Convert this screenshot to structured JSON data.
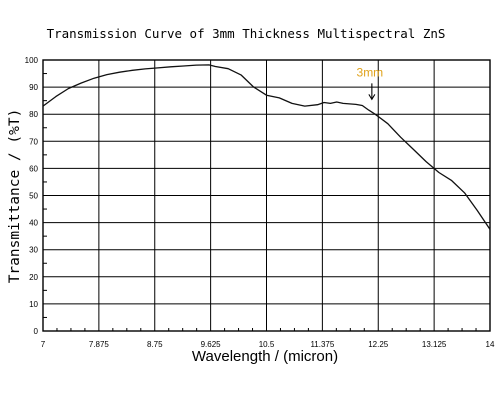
{
  "chart_data": {
    "type": "line",
    "title": "Transmission Curve of 3mm Thickness Multispectral ZnS",
    "xlabel": "Wavelength / (micron)",
    "ylabel": "Transmittance / (%T)",
    "xlim": [
      7,
      14
    ],
    "ylim": [
      0,
      100
    ],
    "x_ticks": [
      "7",
      "7.875",
      "8.75",
      "9.625",
      "10.5",
      "11.375",
      "12.25",
      "13.125",
      "14"
    ],
    "y_ticks": [
      "0",
      "10",
      "20",
      "30",
      "40",
      "50",
      "60",
      "70",
      "80",
      "90",
      "100"
    ],
    "grid": true,
    "annotation": {
      "text": "3mm",
      "x": 12.15,
      "y": 84,
      "color": "#e0a21a"
    },
    "series": [
      {
        "x": [
          7.0,
          7.2,
          7.4,
          7.6,
          7.8,
          8.0,
          8.2,
          8.4,
          8.6,
          8.8,
          9.0,
          9.2,
          9.4,
          9.6,
          9.7,
          9.9,
          10.1,
          10.3,
          10.5,
          10.7,
          10.9,
          11.1,
          11.3,
          11.4,
          11.5,
          11.6,
          11.7,
          11.8,
          11.9,
          12.0,
          12.1,
          12.2,
          12.4,
          12.6,
          12.8,
          13.0,
          13.2,
          13.4,
          13.6,
          13.8,
          14.0
        ],
        "y": [
          83,
          86.5,
          89.5,
          91.5,
          93.3,
          94.6,
          95.5,
          96.2,
          96.7,
          97.1,
          97.5,
          97.8,
          98.1,
          98.2,
          97.6,
          96.8,
          94.5,
          90.0,
          87.0,
          86.0,
          84.0,
          83.0,
          83.5,
          84.3,
          84.0,
          84.5,
          84.0,
          83.8,
          83.6,
          83.2,
          81.5,
          80.0,
          76.5,
          71.5,
          67.0,
          62.5,
          58.5,
          55.5,
          51.0,
          44.5,
          37.5
        ]
      }
    ]
  }
}
